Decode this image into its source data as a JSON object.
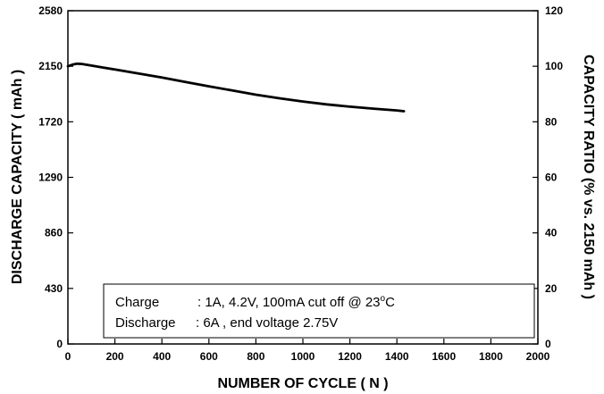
{
  "chart_data": {
    "type": "line",
    "title": "",
    "xlabel": "NUMBER OF CYCLE ( N )",
    "ylabel": "DISCHARGE CAPACITY ( mAh )",
    "y2label": "CAPACITY RATIO (% vs. 2150 mAh )",
    "xlim": [
      0,
      2000
    ],
    "ylim": [
      0,
      2580
    ],
    "y2lim": [
      0,
      120
    ],
    "x_ticks": [
      "0",
      "200",
      "400",
      "600",
      "800",
      "1000",
      "1200",
      "1400",
      "1600",
      "1800",
      "2000"
    ],
    "y_ticks": [
      "0",
      "430",
      "860",
      "1290",
      "1720",
      "2150",
      "2580"
    ],
    "y2_ticks": [
      "0",
      "20",
      "40",
      "60",
      "80",
      "100",
      "120"
    ],
    "grid": false,
    "annotations": {
      "line1_label": "Charge",
      "line1_value": ": 1A, 4.2V, 100mA cut off  @ 23",
      "line1_unit_sup": "o",
      "line1_unit": "C",
      "line2_label": "Discharge",
      "line2_value": ": 6A , end voltage 2.75V"
    },
    "series": [
      {
        "x": [
          0,
          20,
          40,
          60,
          100,
          150,
          200,
          300,
          400,
          500,
          600,
          700,
          800,
          900,
          1000,
          1100,
          1200,
          1300,
          1400,
          1430
        ],
        "y": [
          2150,
          2163,
          2170,
          2168,
          2155,
          2140,
          2125,
          2094,
          2063,
          2028,
          1995,
          1962,
          1930,
          1902,
          1877,
          1855,
          1837,
          1822,
          1808,
          1802
        ]
      }
    ]
  }
}
